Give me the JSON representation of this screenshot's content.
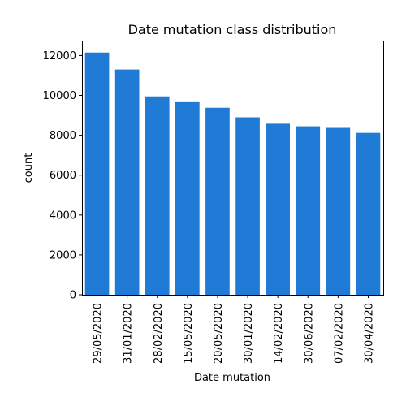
{
  "chart_data": {
    "type": "bar",
    "title": "Date mutation class distribution",
    "xlabel": "Date mutation",
    "ylabel": "count",
    "categories": [
      "29/05/2020",
      "31/01/2020",
      "28/02/2020",
      "15/05/2020",
      "20/05/2020",
      "30/01/2020",
      "14/02/2020",
      "30/06/2020",
      "07/02/2020",
      "30/04/2020"
    ],
    "values": [
      12150,
      11300,
      9950,
      9700,
      9380,
      8900,
      8580,
      8450,
      8370,
      8120
    ],
    "ylim": [
      0,
      12750
    ],
    "yticks": [
      0,
      2000,
      4000,
      6000,
      8000,
      10000,
      12000
    ],
    "bar_color": "#1f7bd6",
    "grid": false,
    "legend": "none"
  }
}
